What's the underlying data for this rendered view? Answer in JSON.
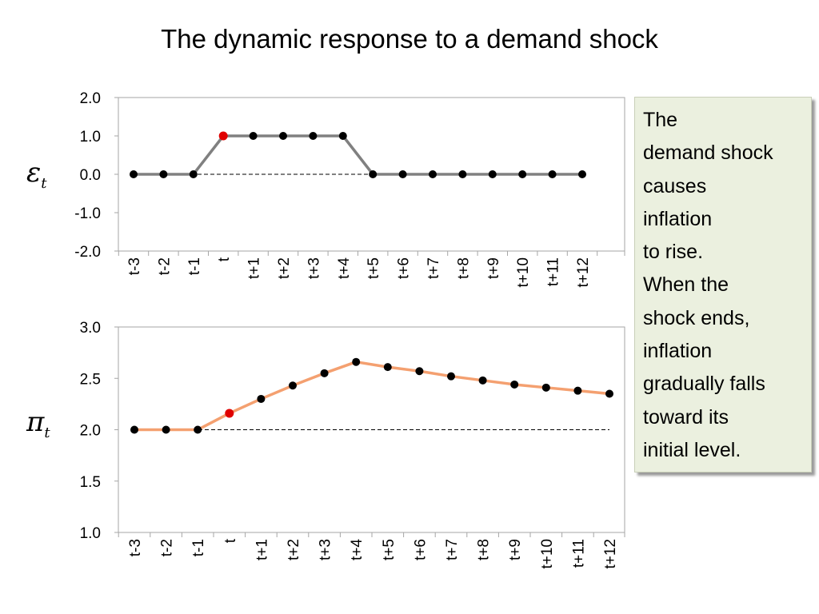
{
  "title": "The dynamic response to a demand shock",
  "note": {
    "lines": [
      "The",
      "demand shock",
      "causes",
      "inflation",
      "to rise.",
      "When the",
      "shock ends,",
      "inflation",
      "gradually falls",
      "toward its",
      "initial level."
    ],
    "background": "#ebf0df"
  },
  "chart_data": [
    {
      "type": "line",
      "ylabel_symbol": "ε",
      "ylabel_sub": "t",
      "categories": [
        "t-3",
        "t-2",
        "t-1",
        "t",
        "t+1",
        "t+2",
        "t+3",
        "t+4",
        "t+5",
        "t+6",
        "t+7",
        "t+8",
        "t+9",
        "t+10",
        "t+11",
        "t+12"
      ],
      "ylim": [
        -2.0,
        2.0
      ],
      "yticks": [
        "2.0",
        "1.0",
        "0.0",
        "-1.0",
        "-2.0"
      ],
      "series": [
        {
          "values": [
            0,
            0,
            0,
            1,
            1,
            1,
            1,
            1,
            0,
            0,
            0,
            0,
            0,
            0,
            0,
            0
          ],
          "color": "#808080",
          "highlight_index": 3
        }
      ],
      "reference_line": 0.0,
      "highlight_color": "#e00000"
    },
    {
      "type": "line",
      "ylabel_symbol": "π",
      "ylabel_sub": "t",
      "categories": [
        "t-3",
        "t-2",
        "t-1",
        "t",
        "t+1",
        "t+2",
        "t+3",
        "t+4",
        "t+5",
        "t+6",
        "t+7",
        "t+8",
        "t+9",
        "t+10",
        "t+11",
        "t+12"
      ],
      "ylim": [
        1.0,
        3.0
      ],
      "yticks": [
        "3.0",
        "2.5",
        "2.0",
        "1.5",
        "1.0"
      ],
      "series": [
        {
          "values": [
            2.0,
            2.0,
            2.0,
            2.16,
            2.3,
            2.43,
            2.55,
            2.66,
            2.61,
            2.57,
            2.52,
            2.48,
            2.44,
            2.41,
            2.38,
            2.35
          ],
          "color": "#f4a070",
          "highlight_index": 3
        }
      ],
      "reference_line": 2.0,
      "highlight_color": "#e00000"
    }
  ]
}
